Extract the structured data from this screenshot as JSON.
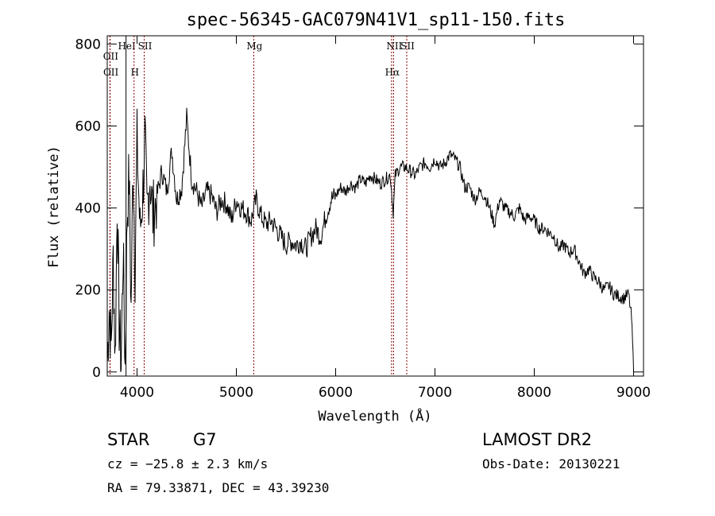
{
  "chart_data": {
    "type": "line",
    "title": "spec-56345-GAC079N41V1_sp11-150.fits",
    "xlabel": "Wavelength (Å)",
    "ylabel": "Flux (relative)",
    "xlim": [
      3700,
      9100
    ],
    "ylim": [
      -10,
      820
    ],
    "x_ticks": [
      4000,
      5000,
      6000,
      7000,
      8000,
      9000
    ],
    "y_ticks": [
      0,
      200,
      400,
      600,
      800
    ],
    "grid": false,
    "series": [
      {
        "color": "#000000",
        "x": [
          3700,
          3720,
          3740,
          3760,
          3780,
          3800,
          3820,
          3840,
          3860,
          3880,
          3900,
          3920,
          3940,
          3960,
          3980,
          4000,
          4030,
          4060,
          4080,
          4100,
          4130,
          4160,
          4200,
          4250,
          4300,
          4350,
          4400,
          4450,
          4500,
          4550,
          4600,
          4650,
          4700,
          4750,
          4800,
          4850,
          4900,
          4950,
          5000,
          5050,
          5100,
          5150,
          5200,
          5250,
          5300,
          5350,
          5400,
          5450,
          5500,
          5550,
          5600,
          5650,
          5700,
          5750,
          5800,
          5850,
          5900,
          5950,
          6000,
          6050,
          6100,
          6150,
          6200,
          6250,
          6300,
          6350,
          6400,
          6450,
          6500,
          6550,
          6580,
          6600,
          6650,
          6700,
          6750,
          6800,
          6850,
          6900,
          6950,
          7000,
          7050,
          7100,
          7150,
          7200,
          7250,
          7300,
          7350,
          7400,
          7450,
          7500,
          7550,
          7600,
          7650,
          7700,
          7750,
          7800,
          7850,
          7900,
          7950,
          8000,
          8050,
          8100,
          8150,
          8200,
          8250,
          8300,
          8350,
          8400,
          8450,
          8500,
          8550,
          8600,
          8650,
          8700,
          8750,
          8800,
          8850,
          8900,
          8950,
          8980,
          9000
        ],
        "values": [
          30,
          160,
          60,
          280,
          30,
          420,
          120,
          20,
          300,
          10,
          380,
          480,
          150,
          520,
          250,
          560,
          340,
          450,
          560,
          390,
          480,
          380,
          430,
          490,
          440,
          540,
          420,
          450,
          620,
          470,
          440,
          400,
          440,
          430,
          390,
          420,
          410,
          370,
          420,
          400,
          390,
          370,
          420,
          380,
          360,
          370,
          350,
          330,
          310,
          320,
          310,
          320,
          300,
          330,
          350,
          330,
          380,
          420,
          430,
          450,
          440,
          460,
          450,
          470,
          460,
          480,
          470,
          460,
          470,
          480,
          390,
          480,
          500,
          500,
          490,
          480,
          500,
          510,
          500,
          520,
          500,
          510,
          530,
          520,
          500,
          450,
          450,
          420,
          440,
          430,
          400,
          360,
          420,
          400,
          390,
          380,
          400,
          370,
          380,
          370,
          350,
          350,
          340,
          330,
          300,
          310,
          290,
          300,
          270,
          240,
          250,
          230,
          220,
          200,
          210,
          190,
          185,
          180,
          190,
          130,
          5
        ]
      }
    ],
    "spectral_lines": [
      {
        "name": "OII",
        "x": 3727,
        "label": "OII",
        "label_row": 0
      },
      {
        "name": "OII",
        "x": 3729,
        "label": "OII",
        "label_row": 1
      },
      {
        "name": "HeI",
        "x": 3889,
        "label": "HeI",
        "label_row": 0,
        "style": "solid"
      },
      {
        "name": "H",
        "x": 3970,
        "label": "H",
        "label_row": 1
      },
      {
        "name": "SII",
        "x": 4072,
        "label": "SII",
        "label_row": 0
      },
      {
        "name": "Mg",
        "x": 5175,
        "label": "Mg",
        "label_row": 0
      },
      {
        "name": "NII",
        "x": 6583,
        "label": "NII",
        "label_row": 0
      },
      {
        "name": "Hα",
        "x": 6563,
        "label": "Hα",
        "label_row": 1
      },
      {
        "name": "SII",
        "x": 6716,
        "label": "SII",
        "label_row": 0
      }
    ],
    "line_color": "#8b0000"
  },
  "info": {
    "object_class": "STAR",
    "subclass": "G7",
    "survey": "LAMOST DR2",
    "cz": "cz = −25.8 ± 2.3 km/s",
    "obs_date": "Obs-Date: 20130221",
    "coords": "RA =  79.33871, DEC =  43.39230"
  }
}
